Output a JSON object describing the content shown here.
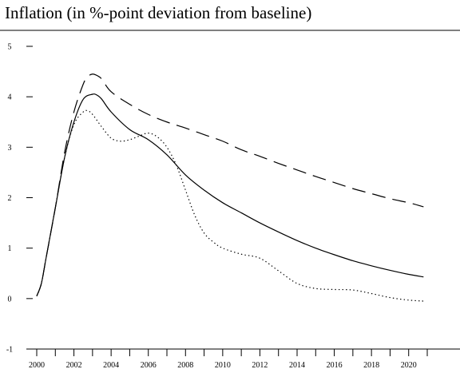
{
  "chart_data": {
    "type": "line",
    "title": "Inflation (in %-point deviation from baseline)",
    "xlabel": "",
    "ylabel": "",
    "xlim": [
      2000,
      2021
    ],
    "ylim": [
      -1,
      5
    ],
    "yticks": [
      -1,
      0,
      1,
      2,
      3,
      4,
      5
    ],
    "xticks": [
      2000,
      2002,
      2004,
      2006,
      2008,
      2010,
      2012,
      2014,
      2016,
      2018,
      2020
    ],
    "grid": false,
    "legend": "none",
    "series": [
      {
        "style": "dashed",
        "x": [
          2000.0,
          2000.25,
          2000.5,
          2001.0,
          2001.5,
          2002.0,
          2002.5,
          2002.75,
          2003.0,
          2003.25,
          2003.5,
          2004.0,
          2005.0,
          2006.0,
          2007.0,
          2008.0,
          2009.0,
          2010.0,
          2011.0,
          2012.0,
          2013.0,
          2014.0,
          2015.0,
          2016.0,
          2017.0,
          2018.0,
          2019.0,
          2020.0,
          2020.8
        ],
        "y": [
          0.05,
          0.3,
          0.8,
          1.8,
          2.9,
          3.7,
          4.25,
          4.4,
          4.45,
          4.42,
          4.35,
          4.1,
          3.85,
          3.65,
          3.5,
          3.38,
          3.25,
          3.12,
          2.95,
          2.82,
          2.68,
          2.55,
          2.42,
          2.3,
          2.18,
          2.08,
          1.98,
          1.9,
          1.82
        ]
      },
      {
        "style": "solid",
        "x": [
          2000.0,
          2000.25,
          2000.5,
          2001.0,
          2001.5,
          2002.0,
          2002.5,
          2003.0,
          2003.25,
          2003.5,
          2004.0,
          2005.0,
          2006.0,
          2007.0,
          2008.0,
          2009.0,
          2010.0,
          2011.0,
          2012.0,
          2013.0,
          2014.0,
          2015.0,
          2016.0,
          2017.0,
          2018.0,
          2019.0,
          2020.0,
          2020.8
        ],
        "y": [
          0.05,
          0.3,
          0.8,
          1.8,
          2.8,
          3.5,
          3.95,
          4.05,
          4.03,
          3.95,
          3.7,
          3.35,
          3.15,
          2.85,
          2.45,
          2.15,
          1.9,
          1.7,
          1.5,
          1.32,
          1.15,
          1.0,
          0.87,
          0.75,
          0.65,
          0.56,
          0.48,
          0.43
        ]
      },
      {
        "style": "dotted",
        "x": [
          2000.0,
          2000.25,
          2000.5,
          2001.0,
          2001.5,
          2002.0,
          2002.5,
          2002.75,
          2003.0,
          2003.5,
          2004.0,
          2004.5,
          2005.0,
          2005.5,
          2006.0,
          2006.5,
          2007.0,
          2007.5,
          2008.0,
          2008.5,
          2009.0,
          2009.5,
          2010.0,
          2011.0,
          2012.0,
          2013.0,
          2014.0,
          2015.0,
          2016.0,
          2017.0,
          2018.0,
          2019.0,
          2020.0,
          2020.8
        ],
        "y": [
          0.05,
          0.3,
          0.8,
          1.8,
          2.8,
          3.45,
          3.7,
          3.72,
          3.65,
          3.4,
          3.18,
          3.12,
          3.15,
          3.22,
          3.28,
          3.2,
          3.0,
          2.65,
          2.15,
          1.65,
          1.3,
          1.12,
          1.0,
          0.88,
          0.8,
          0.55,
          0.3,
          0.2,
          0.18,
          0.17,
          0.1,
          0.02,
          -0.03,
          -0.05
        ]
      }
    ]
  }
}
